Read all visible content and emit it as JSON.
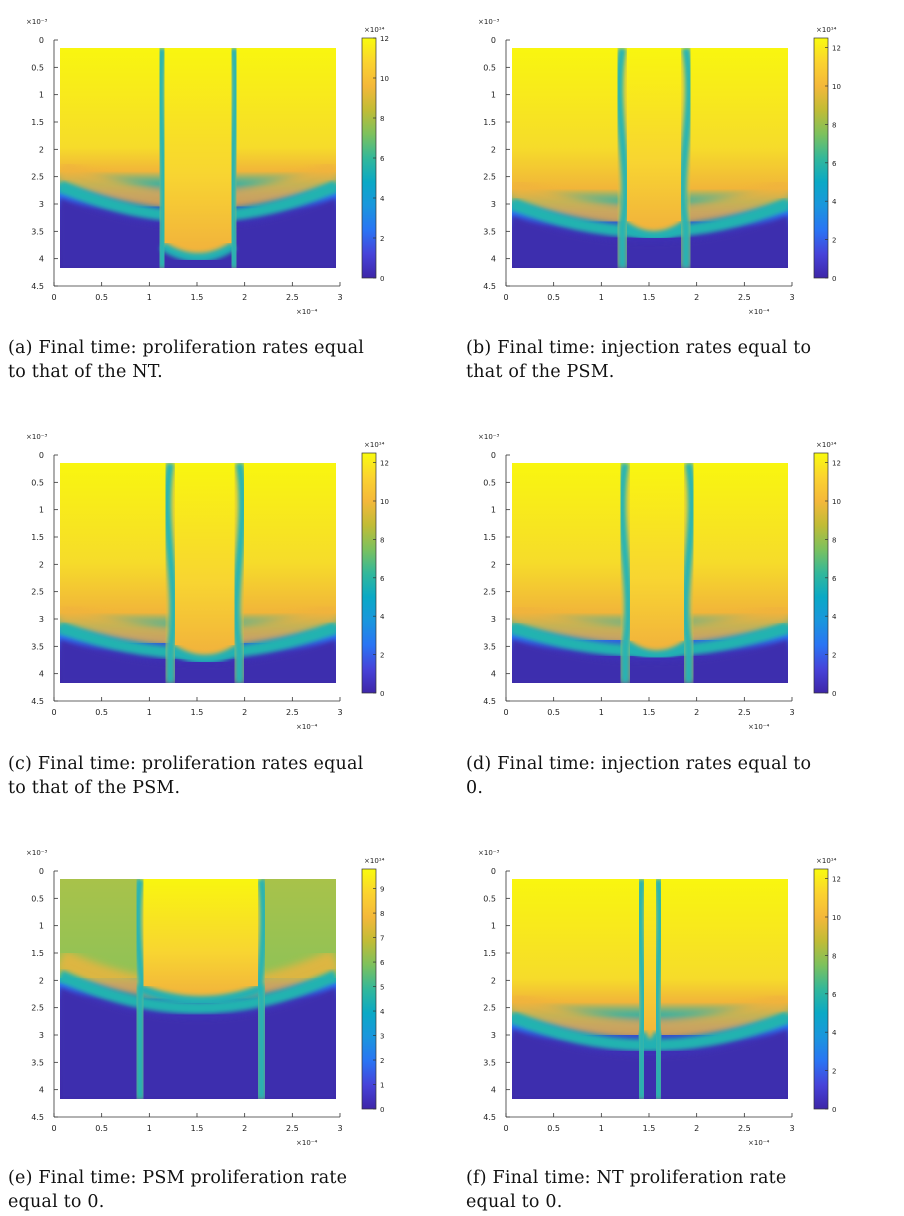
{
  "figure": {
    "x_ticks": [
      "0",
      "0.5",
      "1",
      "1.5",
      "2",
      "2.5",
      "3"
    ],
    "y_ticks": [
      "0",
      "0.5",
      "1",
      "1.5",
      "2",
      "2.5",
      "3",
      "3.5",
      "4",
      "4.5"
    ],
    "x_multiplier": "×10⁻⁴",
    "y_multiplier": "×10⁻³",
    "colorbar_multiplier": "×10¹⁴",
    "colormap": [
      "#3e26a8",
      "#4743d9",
      "#2a74f4",
      "#1a96dd",
      "#0aa9c5",
      "#33b89a",
      "#7dc15d",
      "#c1bc36",
      "#f4b83a",
      "#fbd32f",
      "#f9fb0e"
    ],
    "panels": [
      {
        "id": "a",
        "caption": "(a) Final time: proliferation rates equal to that of the NT.",
        "caption_lines": [
          "(a) Final time: proliferation rates equal",
          "to that of the NT."
        ],
        "colorbar_ticks": [
          "0",
          "2",
          "4",
          "6",
          "8",
          "10",
          "12"
        ],
        "colorbar_max": 12
      },
      {
        "id": "b",
        "caption": "(b) Final time: injection rates equal to that of the PSM.",
        "caption_lines": [
          "(b) Final time: injection rates equal to",
          "that of the PSM."
        ],
        "colorbar_ticks": [
          "0",
          "2",
          "4",
          "6",
          "8",
          "10",
          "12"
        ],
        "colorbar_max": 12.5
      },
      {
        "id": "c",
        "caption": "(c) Final time: proliferation rates equal to that of the PSM.",
        "caption_lines": [
          "(c) Final time: proliferation rates equal",
          "to that of the PSM."
        ],
        "colorbar_ticks": [
          "0",
          "2",
          "4",
          "6",
          "8",
          "10",
          "12"
        ],
        "colorbar_max": 12.5
      },
      {
        "id": "d",
        "caption": "(d) Final time: injection rates equal to 0.",
        "caption_lines": [
          "(d) Final time: injection rates equal to",
          "0."
        ],
        "colorbar_ticks": [
          "0",
          "2",
          "4",
          "6",
          "8",
          "10",
          "12"
        ],
        "colorbar_max": 12.5
      },
      {
        "id": "e",
        "caption": "(e) Final time: PSM proliferation rate equal to 0.",
        "caption_lines": [
          "(e) Final time: PSM proliferation rate",
          "equal to 0."
        ],
        "colorbar_ticks": [
          "0",
          "1",
          "2",
          "3",
          "4",
          "5",
          "6",
          "7",
          "8",
          "9"
        ],
        "colorbar_max": 9.8
      },
      {
        "id": "f",
        "caption": "(f) Final time: NT proliferation rate equal to 0.",
        "caption_lines": [
          "(f) Final time: NT proliferation rate",
          "equal to 0."
        ],
        "colorbar_ticks": [
          "0",
          "2",
          "4",
          "6",
          "8",
          "10",
          "12"
        ],
        "colorbar_max": 12.5
      }
    ]
  }
}
